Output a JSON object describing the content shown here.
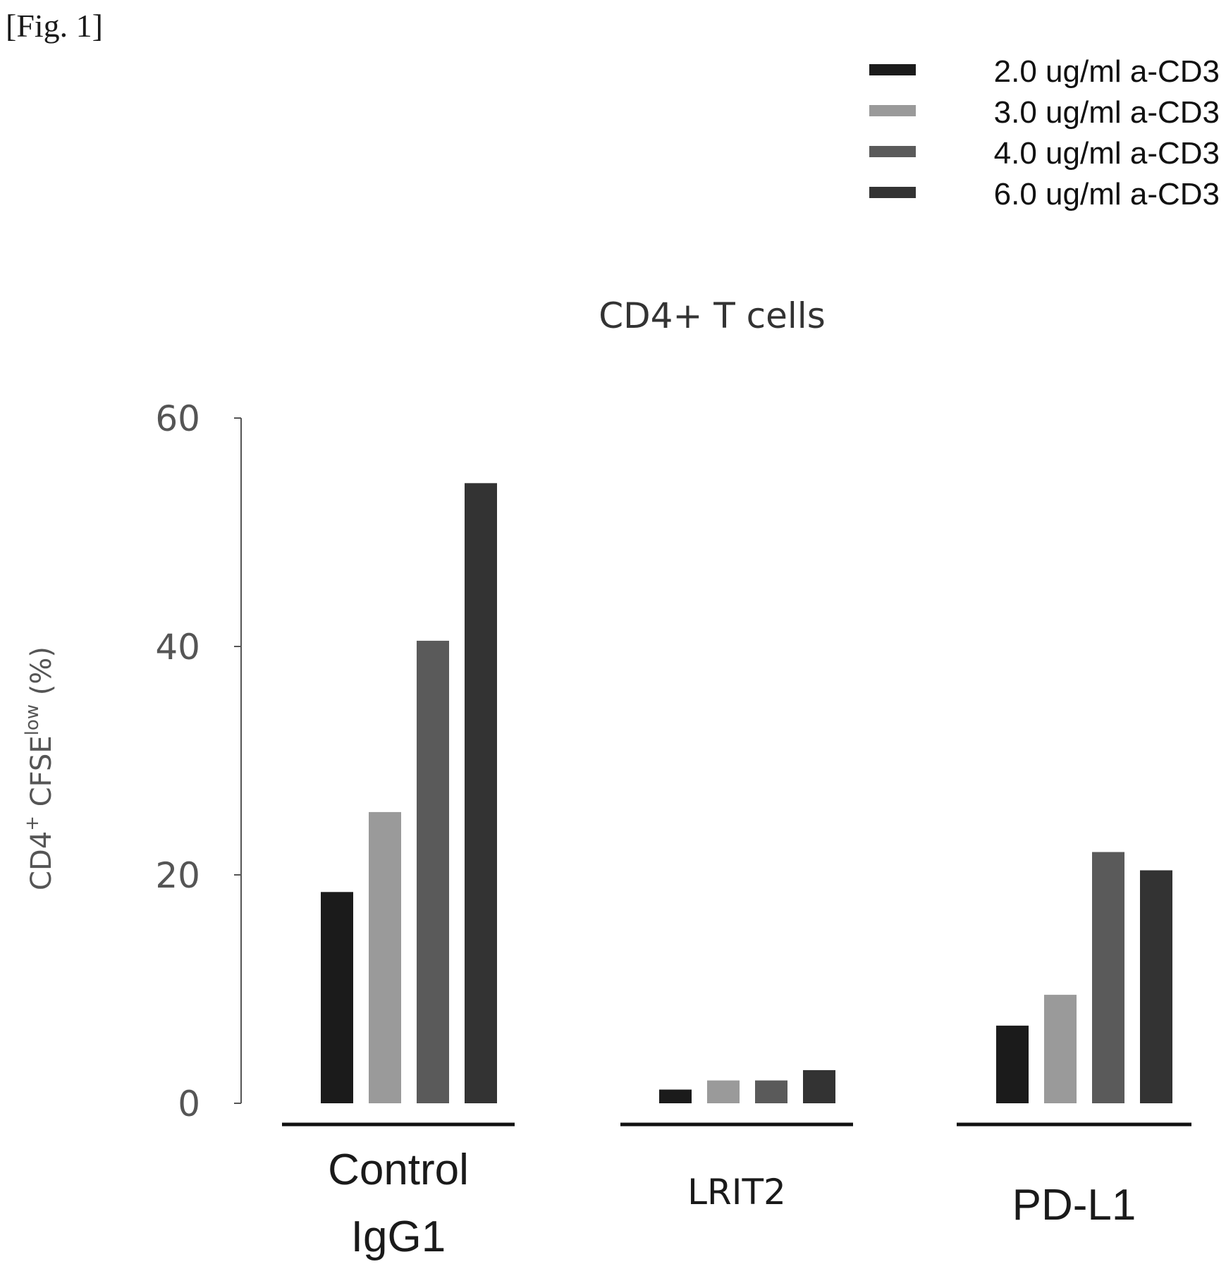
{
  "figure_label": "[Fig. 1]",
  "chart_data": {
    "type": "bar",
    "title": "CD4+ T cells",
    "ylabel": {
      "main": "CD4",
      "sup1": "+",
      "mid": " CFSE",
      "sup2": "low",
      "tail": " (%)"
    },
    "xlabel": "",
    "ylim": [
      0,
      60
    ],
    "yticks": [
      "0",
      "20",
      "40",
      "60"
    ],
    "categories": [
      {
        "lines": [
          "Control",
          "IgG1"
        ],
        "size": "big"
      },
      {
        "lines": [
          "LRIT2"
        ],
        "size": "small"
      },
      {
        "lines": [
          "PD-L1"
        ],
        "size": "big"
      }
    ],
    "series": [
      {
        "name": "2.0 ug/ml  a-CD3",
        "color": "#1b1b1b",
        "values": [
          18.5,
          1.2,
          6.8
        ]
      },
      {
        "name": "3.0 ug/ml  a-CD3",
        "color": "#9a9a9a",
        "values": [
          25.5,
          2.0,
          9.5
        ]
      },
      {
        "name": "4.0 ug/ml  a-CD3",
        "color": "#5a5a5a",
        "values": [
          40.5,
          2.0,
          22.0
        ]
      },
      {
        "name": "6.0 ug/ml  a-CD3",
        "color": "#333333",
        "values": [
          54.3,
          2.9,
          20.4
        ]
      }
    ],
    "legend": {
      "position": "top-right"
    },
    "grid": false
  }
}
